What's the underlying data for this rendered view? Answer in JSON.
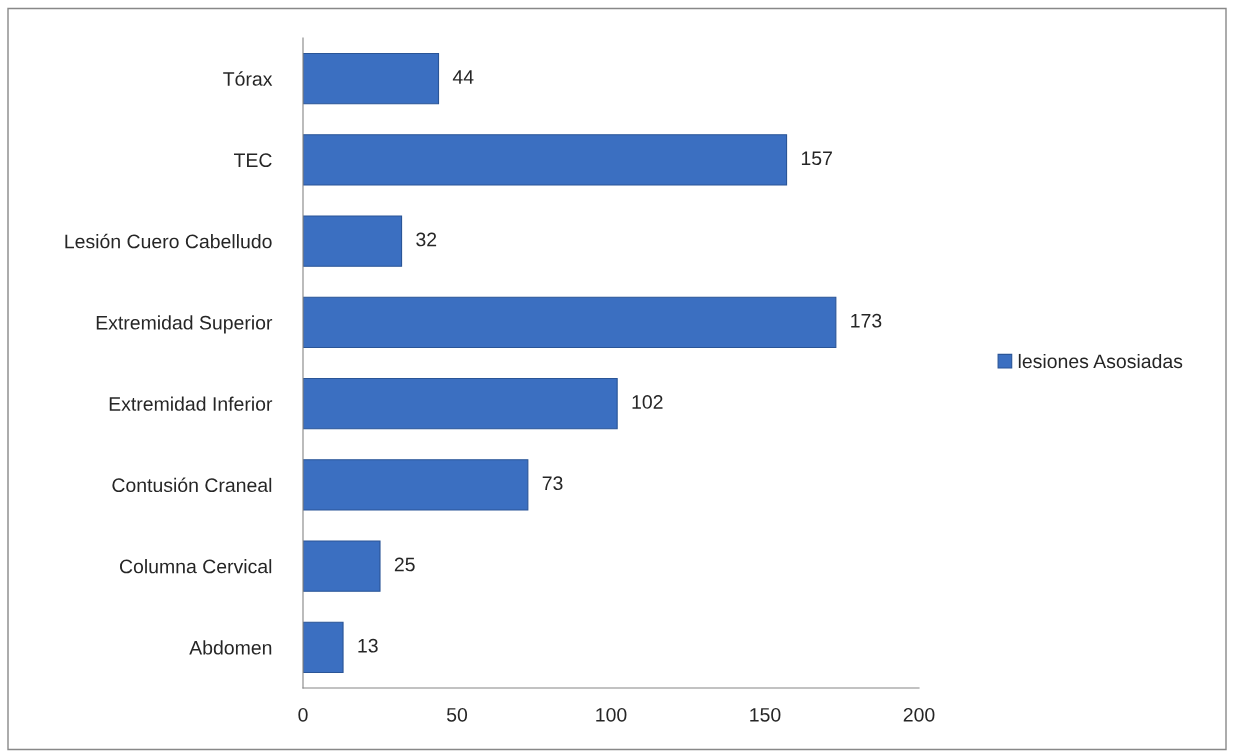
{
  "chart_data": {
    "type": "bar",
    "orientation": "horizontal",
    "categories": [
      "Tórax",
      "TEC",
      "Lesión Cuero Cabelludo",
      "Extremidad Superior",
      "Extremidad Inferior",
      "Contusión Craneal",
      "Columna Cervical",
      "Abdomen"
    ],
    "series": [
      {
        "name": "lesiones Asosiadas",
        "color": "#3b6fc1",
        "values": [
          44,
          157,
          32,
          173,
          102,
          73,
          25,
          13
        ]
      }
    ],
    "xlim": [
      0,
      200
    ],
    "xticks": [
      0,
      50,
      100,
      150,
      200
    ],
    "data_labels": true,
    "grid": false,
    "legend": "right"
  }
}
